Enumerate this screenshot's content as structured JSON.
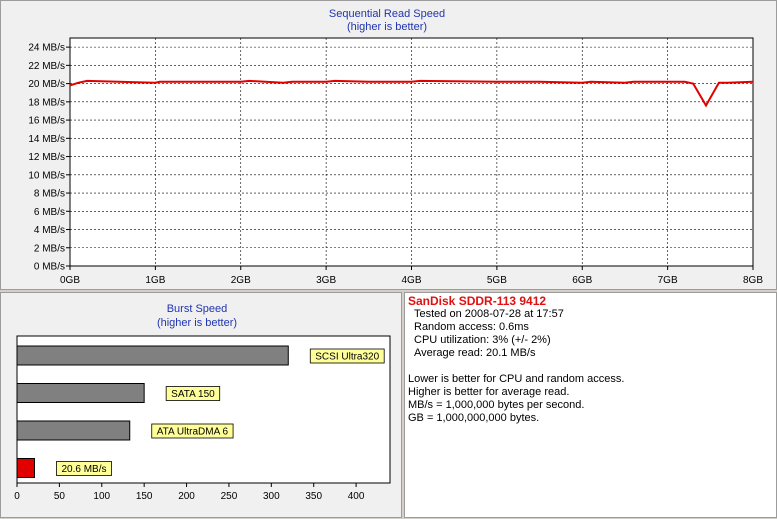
{
  "chart_data": [
    {
      "type": "line",
      "title": "Sequential Read Speed",
      "subtitle": "(higher is better)",
      "x_ticks": [
        "0GB",
        "1GB",
        "2GB",
        "3GB",
        "4GB",
        "5GB",
        "6GB",
        "7GB",
        "8GB"
      ],
      "y_ticks": [
        "0 MB/s",
        "2 MB/s",
        "4 MB/s",
        "6 MB/s",
        "8 MB/s",
        "10 MB/s",
        "12 MB/s",
        "14 MB/s",
        "16 MB/s",
        "18 MB/s",
        "20 MB/s",
        "22 MB/s",
        "24 MB/s"
      ],
      "xlim": [
        0,
        8
      ],
      "ylim": [
        0,
        25
      ],
      "grid": true,
      "series": [
        {
          "color": "#e00000",
          "x": [
            0,
            0.1,
            0.2,
            1.0,
            1.05,
            2.0,
            2.1,
            2.5,
            2.6,
            3.0,
            3.1,
            3.5,
            4.0,
            4.1,
            5.0,
            5.5,
            6.0,
            6.1,
            6.5,
            6.6,
            7.0,
            7.2,
            7.3,
            7.45,
            7.6,
            7.7,
            8.0
          ],
          "y": [
            19.8,
            20.1,
            20.3,
            20.1,
            20.2,
            20.2,
            20.3,
            20.1,
            20.2,
            20.2,
            20.3,
            20.2,
            20.2,
            20.3,
            20.2,
            20.2,
            20.1,
            20.2,
            20.1,
            20.2,
            20.2,
            20.2,
            20.0,
            17.6,
            20.1,
            20.1,
            20.2
          ]
        }
      ]
    },
    {
      "type": "bar",
      "orientation": "horizontal",
      "title": "Burst Speed",
      "subtitle": "(higher is better)",
      "x_ticks": [
        "0",
        "50",
        "100",
        "150",
        "200",
        "250",
        "300",
        "350",
        "400"
      ],
      "xlim": [
        0,
        440
      ],
      "bars": [
        {
          "label": "SCSI Ultra320",
          "value": 320,
          "color": "#808080"
        },
        {
          "label": "SATA 150",
          "value": 150,
          "color": "#808080"
        },
        {
          "label": "ATA UltraDMA 6",
          "value": 133,
          "color": "#808080"
        },
        {
          "label": "20.6 MB/s",
          "value": 20.6,
          "color": "#e00000"
        }
      ]
    }
  ],
  "info": {
    "device": "SanDisk SDDR-113 9412",
    "tested": "Tested on 2008-07-28 at 17:57",
    "random_access": "Random access: 0.6ms",
    "cpu": "CPU utilization: 3% (+/- 2%)",
    "average_read": "Average read: 20.1 MB/s",
    "note1": "Lower is better for CPU and random access.",
    "note2": "Higher is better for average read.",
    "note3": "MB/s = 1,000,000 bytes per second.",
    "note4": "GB = 1,000,000,000 bytes."
  }
}
